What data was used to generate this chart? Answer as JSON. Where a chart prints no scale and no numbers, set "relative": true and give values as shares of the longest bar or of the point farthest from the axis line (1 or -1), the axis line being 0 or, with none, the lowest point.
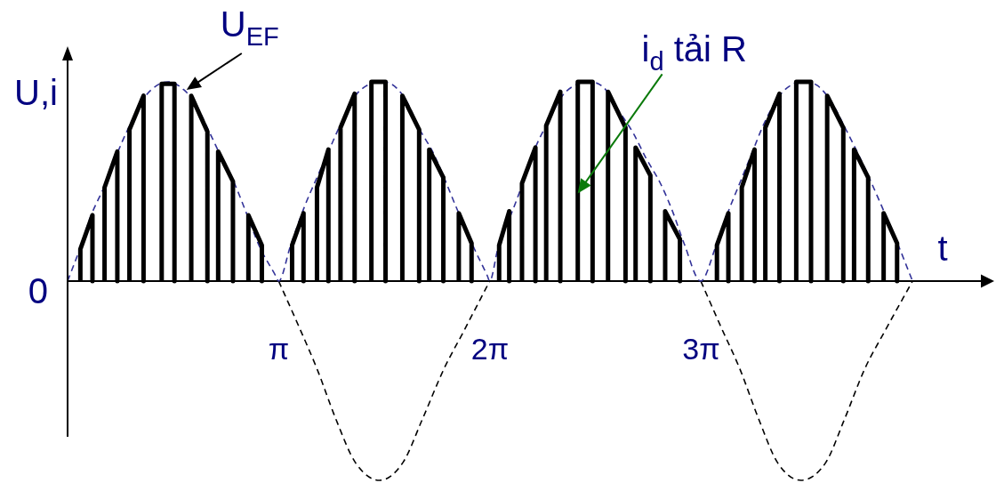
{
  "chart_data": {
    "type": "line",
    "relative": true,
    "xlabel": "t",
    "ylabel": "U,i",
    "xlim": [
      0,
      13.6
    ],
    "xticks": [
      {
        "value": 3.1416,
        "label": "π"
      },
      {
        "value": 6.2832,
        "label": "2π"
      },
      {
        "value": 9.4248,
        "label": "3π"
      }
    ],
    "annotations": [
      {
        "text": "0",
        "x": 0,
        "y": 0
      },
      {
        "text": "U$_{EF}$",
        "x": 1.77,
        "y": 0.96
      },
      "i$_{d}$ tải R"
    ],
    "series": [
      {
        "color": "#000000",
        "line_style": "solid",
        "x": [
          0.19,
          0.19,
          0.37,
          0.37,
          null,
          0.55,
          0.55,
          0.74,
          0.74,
          null,
          0.92,
          0.92,
          1.13,
          1.13,
          null,
          1.4,
          1.4,
          1.59,
          1.59,
          null,
          1.84,
          1.84,
          2.08,
          2.08,
          null,
          2.24,
          2.24,
          2.46,
          2.46,
          null,
          2.69,
          2.69,
          2.89,
          2.89,
          null,
          3.34,
          3.34,
          3.51,
          3.51,
          null,
          3.71,
          3.71,
          3.88,
          3.88,
          null,
          4.06,
          4.06,
          4.27,
          4.27,
          null,
          4.52,
          4.52,
          4.73,
          4.73,
          null,
          4.98,
          4.98,
          5.23,
          5.23,
          null,
          5.38,
          5.38,
          5.59,
          5.59,
          null,
          5.82,
          5.82,
          6.01,
          6.01,
          null,
          6.42,
          6.42,
          6.57,
          6.57,
          null,
          6.76,
          6.76,
          6.96,
          6.96,
          null,
          7.12,
          7.12,
          7.33,
          7.33,
          null,
          7.59,
          7.59,
          7.81,
          7.81,
          null,
          8.04,
          8.04,
          8.3,
          8.3,
          null,
          8.45,
          8.45,
          8.67,
          8.67,
          null,
          8.89,
          8.89,
          9.11,
          9.11,
          null,
          9.66,
          9.66,
          9.83,
          9.83,
          null,
          10.03,
          10.03,
          10.22,
          10.22,
          null,
          10.38,
          10.38,
          10.59,
          10.59,
          null,
          10.84,
          10.84,
          11.06,
          11.06,
          null,
          11.3,
          11.3,
          11.54,
          11.54,
          null,
          11.7,
          11.7,
          11.91,
          11.91,
          null,
          12.14,
          12.14,
          12.34,
          12.34
        ],
        "values": [
          0,
          0.16,
          0.33,
          0,
          null,
          0,
          0.47,
          0.65,
          0,
          null,
          0,
          0.76,
          0.93,
          0,
          null,
          0,
          0.99,
          0.99,
          0,
          null,
          0,
          0.93,
          0.75,
          0,
          null,
          0,
          0.65,
          0.5,
          0,
          null,
          0,
          0.33,
          0.18,
          0,
          null,
          0,
          0.18,
          0.34,
          0,
          null,
          0,
          0.47,
          0.66,
          0,
          null,
          0,
          0.77,
          0.94,
          0,
          null,
          0,
          1,
          1,
          0,
          null,
          0,
          0.93,
          0.76,
          0,
          null,
          0,
          0.66,
          0.52,
          0,
          null,
          0,
          0.34,
          0.19,
          0,
          null,
          0,
          0.18,
          0.35,
          0,
          null,
          0,
          0.49,
          0.67,
          0,
          null,
          0,
          0.78,
          0.95,
          0,
          null,
          0,
          1,
          1,
          0,
          null,
          0,
          0.95,
          0.77,
          0,
          null,
          0,
          0.67,
          0.53,
          0,
          null,
          0,
          0.35,
          0.21,
          0,
          null,
          0,
          0.18,
          0.34,
          0,
          null,
          0,
          0.47,
          0.66,
          0,
          null,
          0,
          0.77,
          0.94,
          0,
          null,
          0,
          1,
          1,
          0,
          null,
          0,
          0.93,
          0.77,
          0,
          null,
          0,
          0.66,
          0.52,
          0,
          null,
          0,
          0.34,
          0.19,
          0
        ]
      },
      {
        "color": "#333399",
        "line_style": "dashed",
        "x": [
          0,
          0.18,
          0.35,
          0.54,
          0.75,
          0.88,
          1.14,
          1.37,
          1.5,
          1.73,
          1.9,
          2.12,
          2.29,
          2.47,
          2.65,
          2.86,
          3.09,
          3.14,
          3.31,
          3.52,
          3.71,
          3.88,
          4.08,
          4.28,
          4.5,
          4.64,
          4.81,
          5.03,
          5.24,
          5.43,
          5.6,
          5.77,
          6.04,
          6.24,
          6.28,
          6.4,
          6.57,
          6.75,
          6.96,
          7.15,
          7.36,
          7.59,
          7.76,
          7.98,
          8.21,
          8.42,
          8.6,
          8.82,
          9,
          9.17,
          9.42,
          9.64,
          9.83,
          10.01,
          10.19,
          10.36,
          10.59,
          10.8,
          10.96,
          11.16,
          11.38,
          11.55,
          11.73,
          11.91,
          12.08,
          12.31,
          12.57
        ],
        "values": [
          0,
          0.16,
          0.33,
          0.47,
          0.65,
          0.75,
          0.92,
          0.99,
          1,
          0.96,
          0.89,
          0.74,
          0.62,
          0.5,
          0.35,
          0.17,
          0.03,
          0,
          0.17,
          0.37,
          0.52,
          0.65,
          0.8,
          0.93,
          0.99,
          1,
          0.99,
          0.91,
          0.76,
          0.65,
          0.52,
          0.38,
          0.17,
          0.03,
          0,
          0.16,
          0.31,
          0.47,
          0.67,
          0.8,
          0.93,
          0.99,
          1,
          0.97,
          0.85,
          0.74,
          0.62,
          0.49,
          0.35,
          0.19,
          0,
          0.17,
          0.35,
          0.5,
          0.65,
          0.79,
          0.93,
          0.99,
          1,
          0.98,
          0.89,
          0.78,
          0.66,
          0.53,
          0.4,
          0.22,
          0
        ]
      },
      {
        "color": "#000000",
        "line_style": "dashed",
        "x": [
          3.14,
          3.43,
          3.71,
          4,
          4.28,
          4.64,
          4.99,
          5.27,
          5.6,
          5.88,
          6.28
        ],
        "values": [
          0,
          -0.22,
          -0.44,
          -0.7,
          -0.91,
          -1,
          -0.91,
          -0.7,
          -0.44,
          -0.26,
          0
        ]
      },
      {
        "color": "#000000",
        "line_style": "dashed",
        "x": [
          9.42,
          9.72,
          10,
          10.29,
          10.56,
          10.91,
          11.28,
          11.55,
          11.86,
          12.16,
          12.57
        ],
        "values": [
          0,
          -0.23,
          -0.44,
          -0.7,
          -0.91,
          -1,
          -0.91,
          -0.7,
          -0.44,
          -0.25,
          0
        ]
      }
    ]
  }
}
